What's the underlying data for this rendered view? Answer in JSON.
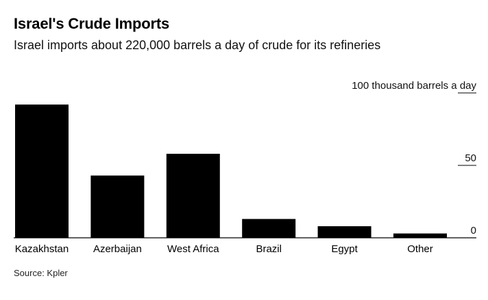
{
  "chart_data": {
    "type": "bar",
    "title": "Israel's Crude Imports",
    "subtitle": "Israel imports about 220,000 barrels a day of crude for its refineries",
    "source": "Source: Kpler",
    "ylabel": "thousand barrels a day",
    "ylim": [
      0,
      100
    ],
    "yticks": [
      {
        "value": 100,
        "label": "100 thousand barrels a day"
      },
      {
        "value": 50,
        "label": "50"
      },
      {
        "value": 0,
        "label": "0"
      }
    ],
    "categories": [
      "Kazakhstan",
      "Azerbaijan",
      "West Africa",
      "Brazil",
      "Egypt",
      "Other"
    ],
    "values": [
      92,
      43,
      58,
      13,
      8,
      3
    ],
    "grid": false,
    "bar_color": "#000000"
  }
}
